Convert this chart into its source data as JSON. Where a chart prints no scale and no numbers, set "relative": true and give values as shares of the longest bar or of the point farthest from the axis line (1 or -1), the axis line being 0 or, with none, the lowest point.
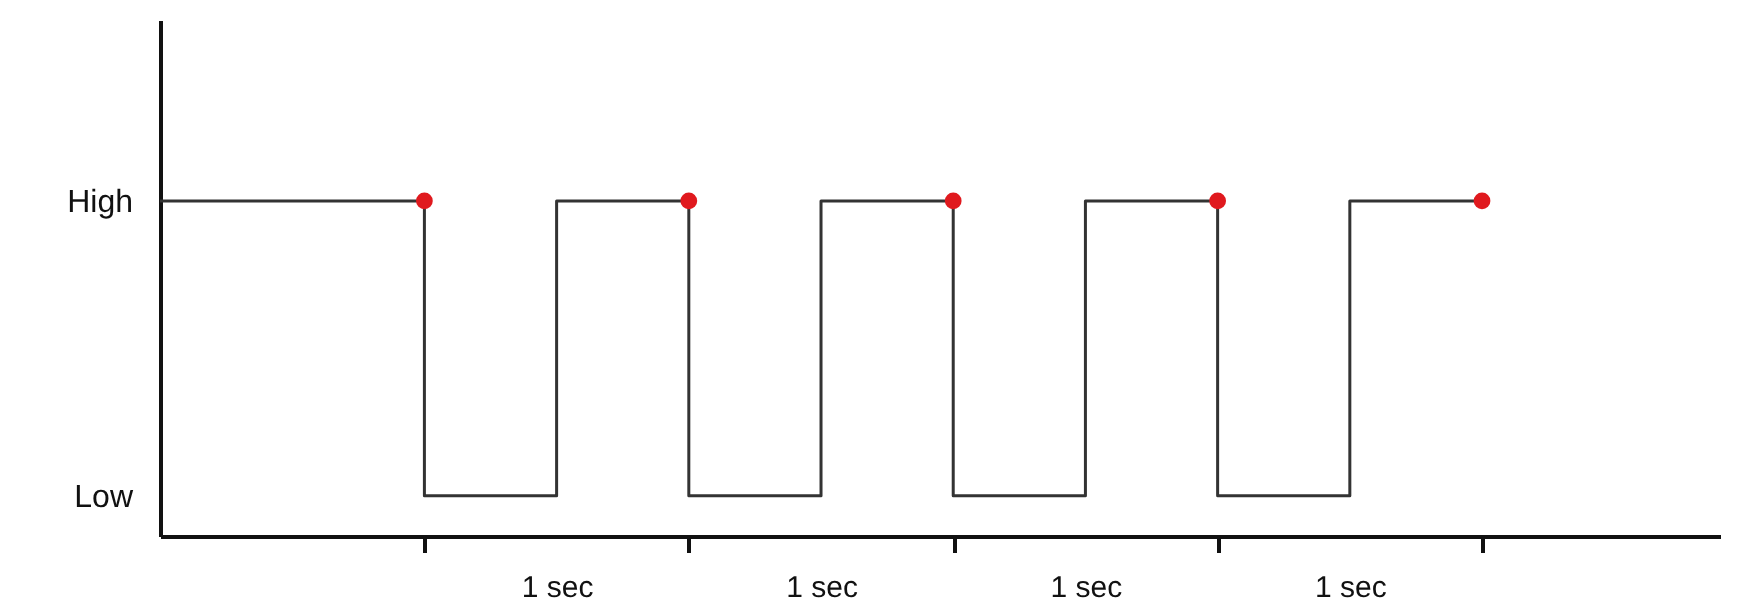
{
  "chart_data": {
    "type": "step",
    "relative": true,
    "categories": [
      null,
      null,
      null,
      "1 sec",
      null,
      "1 sec",
      null,
      "1 sec",
      null,
      "1 sec",
      null
    ],
    "annotations": [
      "High",
      "Low"
    ],
    "series": [
      {
        "color": "#333333",
        "line_style": "solid",
        "values": [
          1,
          1,
          0.12,
          1,
          0.12,
          1,
          0.12,
          1,
          0.12,
          1,
          1
        ]
      },
      {
        "type": "scatter",
        "color": "#e0191e",
        "marker": "circle",
        "values": [
          null,
          null,
          1,
          null,
          1,
          null,
          1,
          null,
          1,
          null,
          1
        ]
      }
    ]
  }
}
